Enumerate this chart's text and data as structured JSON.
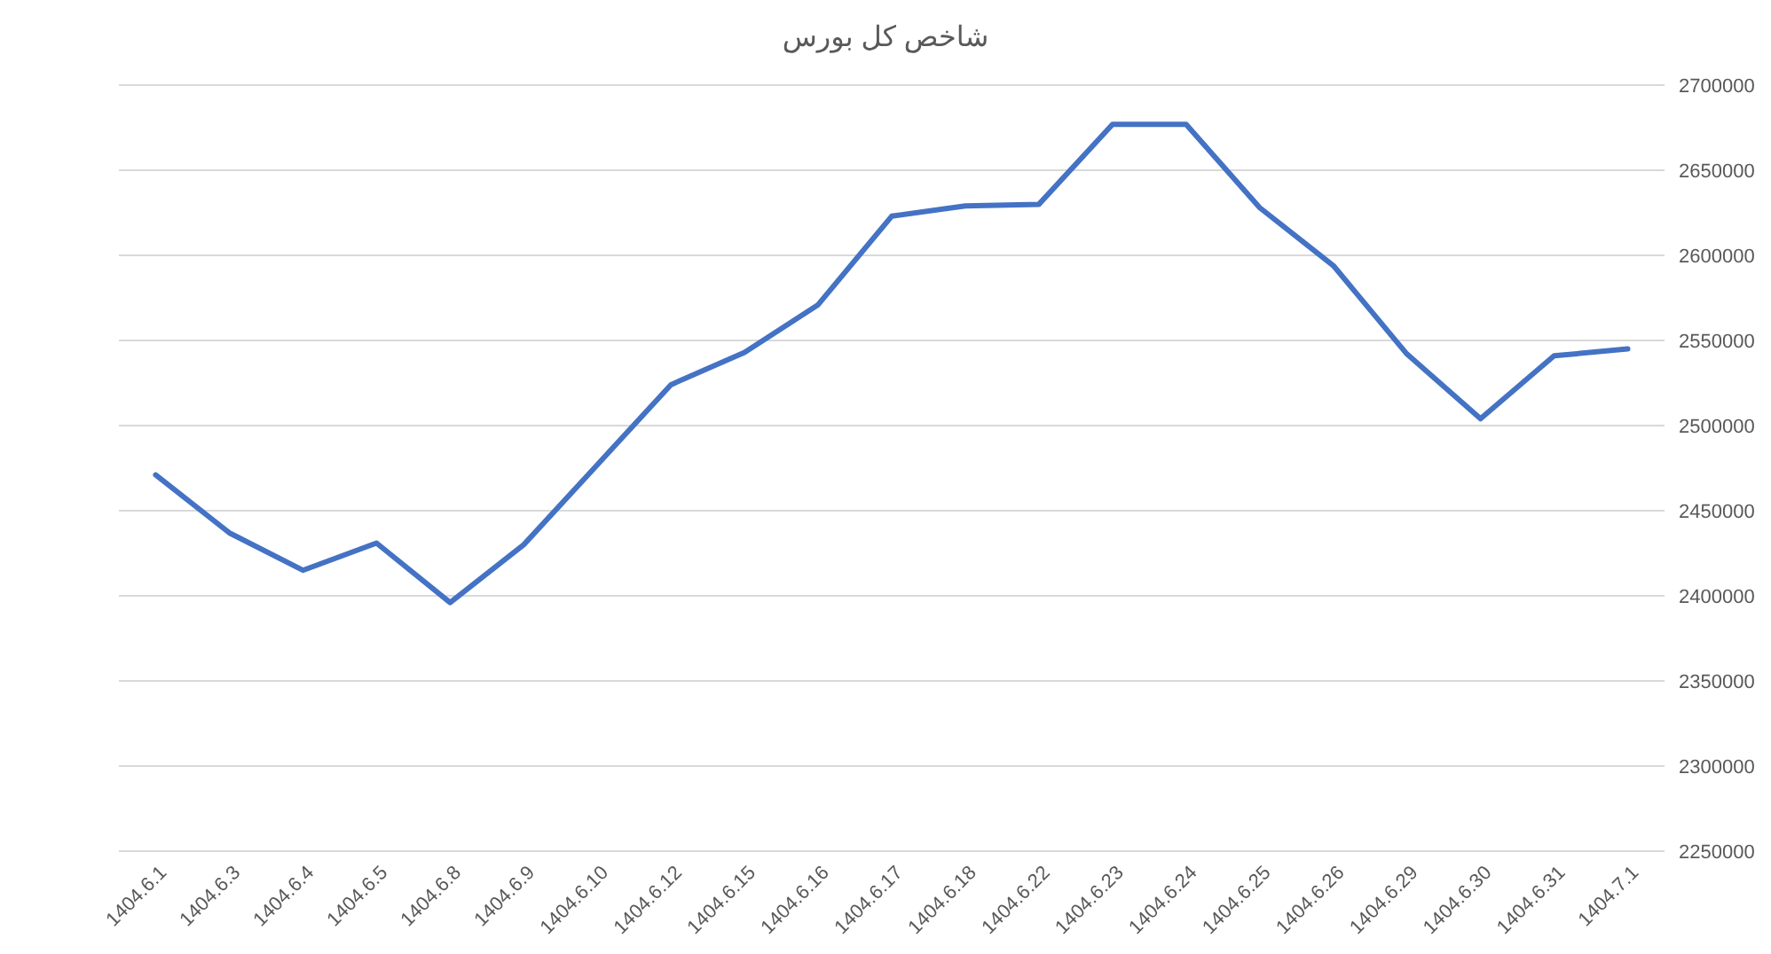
{
  "chart_data": {
    "type": "line",
    "title": "شاخص کل بورس",
    "categories": [
      "1404.6.1",
      "1404.6.3",
      "1404.6.4",
      "1404.6.5",
      "1404.6.8",
      "1404.6.9",
      "1404.6.10",
      "1404.6.12",
      "1404.6.15",
      "1404.6.16",
      "1404.6.17",
      "1404.6.18",
      "1404.6.22",
      "1404.6.23",
      "1404.6.24",
      "1404.6.25",
      "1404.6.26",
      "1404.6.29",
      "1404.6.30",
      "1404.6.31",
      "1404.7.1"
    ],
    "series": [
      {
        "color": "#4472c4",
        "values": [
          2471000,
          2437000,
          2415000,
          2431000,
          2396000,
          2430000,
          2477000,
          2524000,
          2543000,
          2571000,
          2623000,
          2629000,
          2630000,
          2677000,
          2677000,
          2628000,
          2594000,
          2542000,
          2504000,
          2541000,
          2545000
        ]
      }
    ],
    "ylim": [
      2250000,
      2700000
    ],
    "yticks": [
      2250000,
      2300000,
      2350000,
      2400000,
      2450000,
      2500000,
      2550000,
      2600000,
      2650000,
      2700000
    ],
    "grid": "y"
  }
}
